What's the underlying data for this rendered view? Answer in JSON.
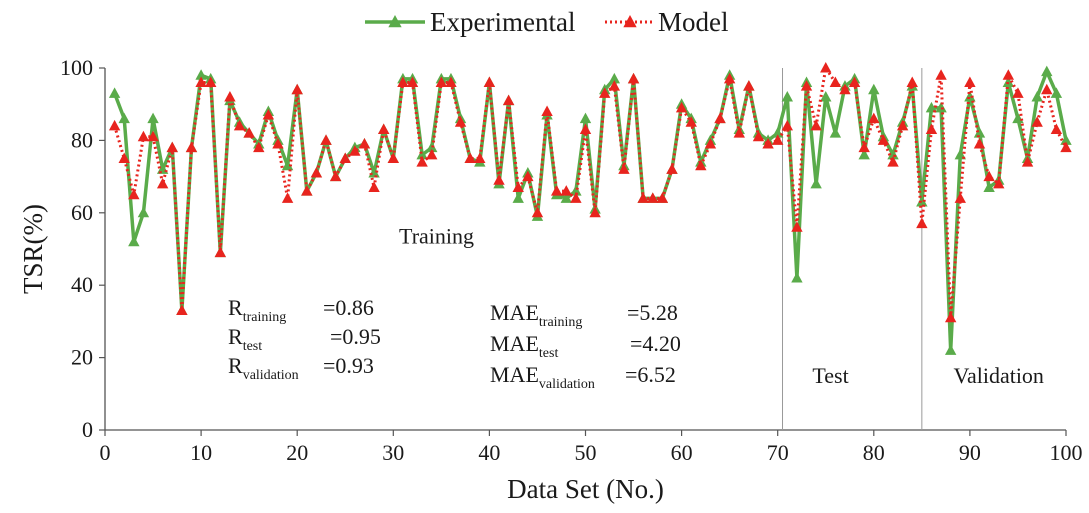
{
  "chart_data": {
    "type": "line",
    "title": "",
    "xlabel": "Data Set (No.)",
    "ylabel": "TSR(%)",
    "xlim": [
      0,
      100
    ],
    "ylim": [
      0,
      100
    ],
    "x_ticks": [
      "0",
      "10",
      "20",
      "30",
      "40",
      "50",
      "60",
      "70",
      "80",
      "90",
      "100"
    ],
    "y_ticks": [
      "0",
      "20",
      "40",
      "60",
      "80",
      "100"
    ],
    "grid": false,
    "legend": {
      "position": "top-center"
    },
    "x": [
      1,
      2,
      3,
      4,
      5,
      6,
      7,
      8,
      9,
      10,
      11,
      12,
      13,
      14,
      15,
      16,
      17,
      18,
      19,
      20,
      21,
      22,
      23,
      24,
      25,
      26,
      27,
      28,
      29,
      30,
      31,
      32,
      33,
      34,
      35,
      36,
      37,
      38,
      39,
      40,
      41,
      42,
      43,
      44,
      45,
      46,
      47,
      48,
      49,
      50,
      51,
      52,
      53,
      54,
      55,
      56,
      57,
      58,
      59,
      60,
      61,
      62,
      63,
      64,
      65,
      66,
      67,
      68,
      69,
      70,
      71,
      72,
      73,
      74,
      75,
      76,
      77,
      78,
      79,
      80,
      81,
      82,
      83,
      84,
      85,
      86,
      87,
      88,
      89,
      90,
      91,
      92,
      93,
      94,
      95,
      96,
      97,
      98,
      99,
      100
    ],
    "series": [
      {
        "name": "Experimental",
        "color": "#5aab4a",
        "marker": "triangle",
        "line": "solid",
        "values": [
          93,
          86,
          52,
          60,
          86,
          72,
          78,
          33,
          78,
          98,
          97,
          49,
          91,
          85,
          82,
          79,
          88,
          80,
          73,
          94,
          66,
          71,
          80,
          70,
          75,
          78,
          79,
          71,
          83,
          75,
          97,
          97,
          76,
          78,
          97,
          97,
          86,
          75,
          74,
          96,
          68,
          91,
          64,
          71,
          59,
          87,
          65,
          64,
          66,
          86,
          61,
          94,
          97,
          73,
          97,
          64,
          64,
          64,
          72,
          90,
          86,
          74,
          80,
          86,
          98,
          83,
          95,
          82,
          80,
          82,
          92,
          42,
          96,
          68,
          92,
          82,
          95,
          97,
          76,
          94,
          81,
          76,
          85,
          95,
          63,
          89,
          89,
          22,
          76,
          92,
          82,
          67,
          69,
          96,
          86,
          75,
          92,
          99,
          93,
          80
        ]
      },
      {
        "name": "Model",
        "color": "#e8241e",
        "marker": "triangle",
        "line": "dotted",
        "values": [
          84,
          75,
          65,
          81,
          81,
          68,
          78,
          33,
          78,
          96,
          96,
          49,
          92,
          84,
          82,
          78,
          87,
          79,
          64,
          94,
          66,
          71,
          80,
          70,
          75,
          77,
          79,
          67,
          83,
          75,
          96,
          96,
          74,
          76,
          96,
          96,
          85,
          75,
          75,
          96,
          69,
          91,
          67,
          70,
          60,
          88,
          66,
          66,
          64,
          83,
          60,
          93,
          95,
          72,
          97,
          64,
          64,
          64,
          72,
          89,
          85,
          73,
          79,
          86,
          97,
          82,
          95,
          81,
          79,
          80,
          84,
          56,
          95,
          84,
          100,
          96,
          94,
          96,
          78,
          86,
          80,
          74,
          84,
          96,
          57,
          83,
          98,
          31,
          64,
          96,
          79,
          70,
          68,
          98,
          93,
          74,
          85,
          94,
          83,
          78
        ]
      }
    ],
    "region_labels": [
      {
        "text": "Training",
        "x": 34.5,
        "y": 51.5
      },
      {
        "text": "Test",
        "x": 75.5,
        "y": 13
      },
      {
        "text": "Validation",
        "x": 93,
        "y": 13
      }
    ],
    "dividers": [
      70.5,
      85
    ],
    "stats": {
      "r": [
        {
          "base": "R",
          "sub": "training",
          "value": "=0.86"
        },
        {
          "base": "R",
          "sub": "test",
          "value": "=0.95"
        },
        {
          "base": "R",
          "sub": "validation",
          "value": "=0.93"
        }
      ],
      "mae": [
        {
          "base": "MAE",
          "sub": "training",
          "value": "=5.28"
        },
        {
          "base": "MAE",
          "sub": "test",
          "value": "=4.20"
        },
        {
          "base": "MAE",
          "sub": "validation",
          "value": "=6.52"
        }
      ]
    }
  }
}
